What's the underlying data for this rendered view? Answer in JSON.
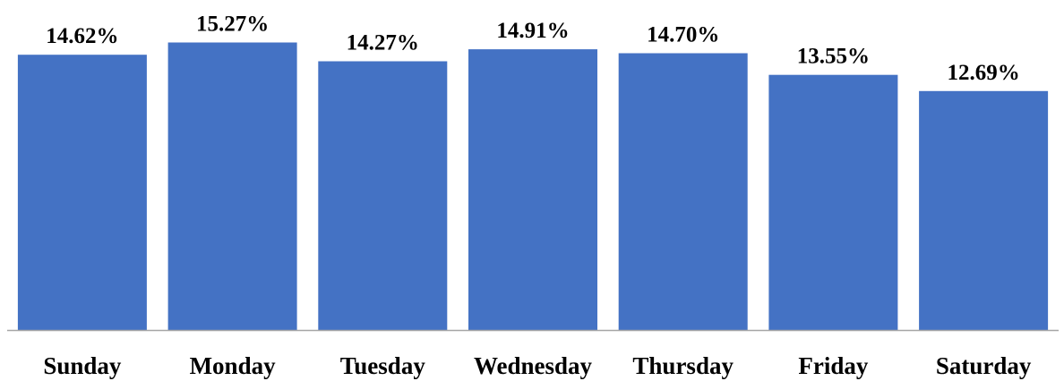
{
  "chart_data": {
    "type": "bar",
    "categories": [
      "Sunday",
      "Monday",
      "Tuesday",
      "Wednesday",
      "Thursday",
      "Friday",
      "Saturday"
    ],
    "values": [
      14.62,
      15.27,
      14.27,
      14.91,
      14.7,
      13.55,
      12.69
    ],
    "value_labels": [
      "14.62%",
      "15.27%",
      "14.27%",
      "14.91%",
      "14.70%",
      "13.55%",
      "12.69%"
    ],
    "title": "",
    "xlabel": "",
    "ylabel": "",
    "ylim": [
      0,
      16.1
    ],
    "grid": false,
    "legend": "none",
    "colors": {
      "bar": "#4472C4",
      "axis": "#A6A6A6",
      "text": "#000000"
    }
  }
}
